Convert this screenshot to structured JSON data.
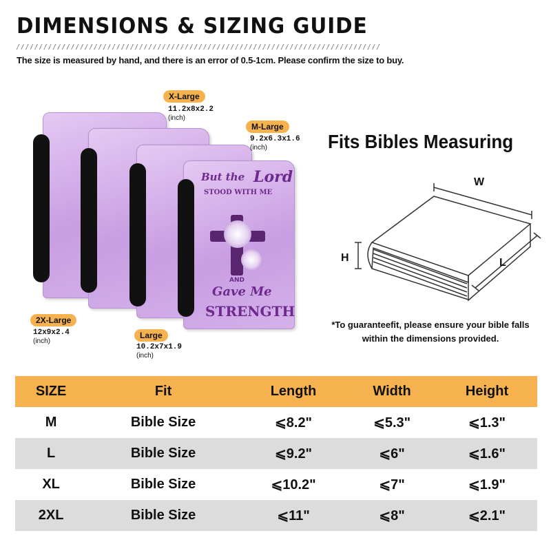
{
  "header": {
    "title": "DIMENSIONS & SIZING GUIDE",
    "subtitle": "The size is measured by hand, and there is an error of 0.5-1cm. Please confirm the size to buy."
  },
  "product_image": {
    "cover_text": [
      "But the",
      "Lord",
      "STOOD WITH ME",
      "AND",
      "Gave Me",
      "STRENGTH"
    ],
    "colors": {
      "cover": "#c89de2",
      "handle": "#111111"
    }
  },
  "size_labels": [
    {
      "name": "X-Large",
      "dims": "11.2x8x2.2",
      "unit": "(inch)"
    },
    {
      "name": "M-Large",
      "dims": "9.2x6.3x1.6",
      "unit": "(inch)"
    },
    {
      "name": "2X-Large",
      "dims": "12x9x2.4",
      "unit": "(inch)"
    },
    {
      "name": "Large",
      "dims": "10.2x7x1.9",
      "unit": "(inch)"
    }
  ],
  "fits": {
    "title": "Fits Bibles Measuring",
    "labels": {
      "w": "W",
      "h": "H",
      "l": "L"
    },
    "note_line1": "*To guaranteefit, please ensure your bible falls",
    "note_line2": "within the dimensions provided."
  },
  "table": {
    "headers": [
      "SIZE",
      "Fit",
      "Length",
      "Width",
      "Height"
    ],
    "rows": [
      [
        "M",
        "Bible Size",
        "⩽8.2\"",
        "⩽5.3\"",
        "⩽1.3\""
      ],
      [
        "L",
        "Bible Size",
        "⩽9.2\"",
        "⩽6\"",
        "⩽1.6\""
      ],
      [
        "XL",
        "Bible Size",
        "⩽10.2\"",
        "⩽7\"",
        "⩽1.9\""
      ],
      [
        "2XL",
        "Bible Size",
        "⩽11\"",
        "⩽8\"",
        "⩽2.1\""
      ]
    ],
    "colors": {
      "header": "#f6b24f",
      "stripe": "#dcdcdc"
    }
  }
}
